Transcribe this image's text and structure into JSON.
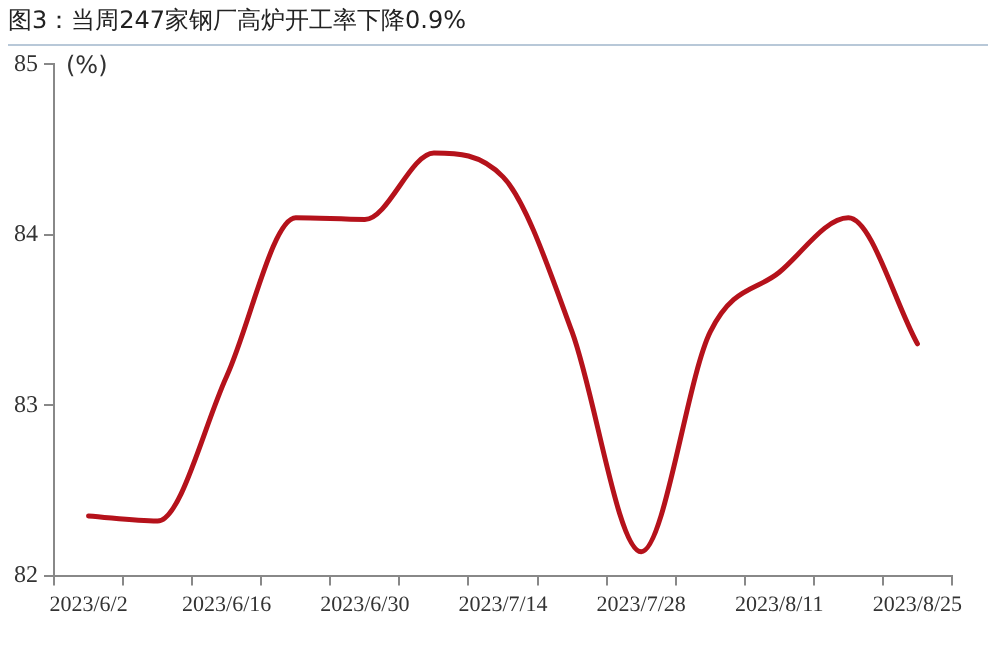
{
  "chart_data": {
    "type": "line",
    "title": "图3：当周247家钢厂高炉开工率下降0.9%",
    "ylabel": "(%)",
    "categories": [
      "2023/6/2",
      null,
      "2023/6/16",
      null,
      "2023/6/30",
      null,
      "2023/7/14",
      null,
      "2023/7/28",
      null,
      "2023/8/11",
      null,
      "2023/8/25"
    ],
    "series": [
      {
        "color": "#b5121b",
        "values": [
          82.35,
          82.32,
          83.17,
          84.1,
          84.09,
          84.48,
          84.34,
          83.43,
          82.14,
          83.43,
          83.78,
          84.1,
          83.36
        ]
      }
    ],
    "ylim": [
      82,
      85
    ],
    "yticks": [
      82,
      83,
      84,
      85
    ],
    "grid": false,
    "legend": false,
    "marker": "none",
    "line_style": "solid"
  }
}
